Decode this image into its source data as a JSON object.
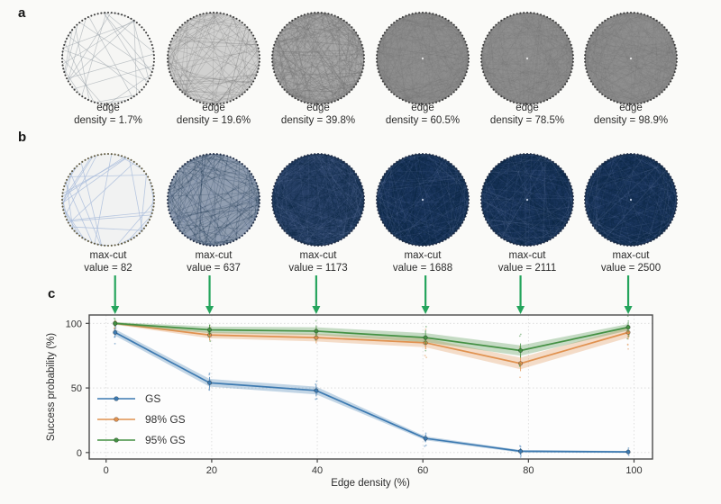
{
  "figure": {
    "panels": {
      "a": {
        "label": "a",
        "items": [
          {
            "line1": "edge",
            "line2": "density = 1.7%",
            "density": 1.7
          },
          {
            "line1": "edge",
            "line2": "density = 19.6%",
            "density": 19.6
          },
          {
            "line1": "edge",
            "line2": "density = 39.8%",
            "density": 39.8
          },
          {
            "line1": "edge",
            "line2": "density = 60.5%",
            "density": 60.5
          },
          {
            "line1": "edge",
            "line2": "density = 78.5%",
            "density": 78.5
          },
          {
            "line1": "edge",
            "line2": "density = 98.9%",
            "density": 98.9
          }
        ]
      },
      "b": {
        "label": "b",
        "items": [
          {
            "line1": "max-cut",
            "line2": "value = 82",
            "value": 82,
            "density": 1.7
          },
          {
            "line1": "max-cut",
            "line2": "value = 637",
            "value": 637,
            "density": 19.6
          },
          {
            "line1": "max-cut",
            "line2": "value = 1173",
            "value": 1173,
            "density": 39.8
          },
          {
            "line1": "max-cut",
            "line2": "value = 1688",
            "value": 1688,
            "density": 60.5
          },
          {
            "line1": "max-cut",
            "line2": "value = 2111",
            "value": 2111,
            "density": 78.5
          },
          {
            "line1": "max-cut",
            "line2": "value = 2500",
            "value": 2500,
            "density": 98.9
          }
        ]
      },
      "c": {
        "label": "c"
      }
    }
  },
  "arrows": {
    "color": "#24a45c",
    "targets": [
      1.7,
      19.6,
      39.8,
      60.5,
      78.5,
      98.9
    ]
  },
  "chart_data": {
    "type": "line",
    "x": [
      1.7,
      19.6,
      39.8,
      60.5,
      78.5,
      98.9
    ],
    "series": [
      {
        "name": "GS",
        "color": "#3d7ab1",
        "values": [
          93,
          54,
          48,
          11,
          1,
          0.5
        ],
        "band": [
          2.5,
          3,
          3,
          1.5,
          1,
          0.8
        ]
      },
      {
        "name": "98% GS",
        "color": "#e0914f",
        "values": [
          100,
          91,
          89,
          85,
          69,
          93
        ],
        "band": [
          1,
          2.5,
          3,
          3.5,
          4.5,
          4
        ]
      },
      {
        "name": "95% GS",
        "color": "#449043",
        "values": [
          100,
          95,
          94,
          89,
          79,
          97
        ],
        "band": [
          1,
          2.5,
          3,
          3.5,
          4,
          2.5
        ]
      }
    ],
    "xlabel": "Edge density (%)",
    "ylabel": "Success probability (%)",
    "xticks": [
      0,
      20,
      40,
      60,
      80,
      100
    ],
    "yticks": [
      0,
      50,
      100
    ],
    "xlim": [
      -3.2,
      103.5
    ],
    "ylim": [
      -5,
      106.5
    ],
    "grid": true,
    "legend_position": "left-middle",
    "title": ""
  }
}
